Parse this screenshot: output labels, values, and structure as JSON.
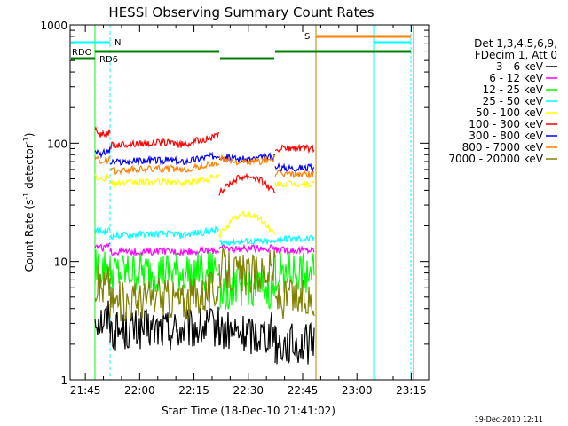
{
  "chart_data": {
    "type": "line",
    "title": "HESSI Observing Summary Count Rates",
    "xlabel": "Start Time (18-Dec-10 21:41:02)",
    "ylabel_main": "Count Rate (s",
    "ylabel_sup1": "-1",
    "ylabel_mid": " detector",
    "ylabel_sup2": "-1",
    "ylabel_end": ")",
    "yscale": "log",
    "ylim": [
      1,
      1000
    ],
    "xlim_minutes": [
      21.68,
      23.33
    ],
    "x_ticks": [
      {
        "label": "21:45",
        "min": 21.75
      },
      {
        "label": "22:00",
        "min": 22.0
      },
      {
        "label": "22:15",
        "min": 22.25
      },
      {
        "label": "22:30",
        "min": 22.5
      },
      {
        "label": "22:45",
        "min": 22.75
      },
      {
        "label": "23:00",
        "min": 23.0
      },
      {
        "label": "23:15",
        "min": 23.25
      }
    ],
    "y_ticks": [
      {
        "label": "1",
        "v": 1
      },
      {
        "label": "10",
        "v": 10
      },
      {
        "label": "100",
        "v": 100
      },
      {
        "label": "1000",
        "v": 1000
      }
    ],
    "legend_title": [
      "Det 1,3,4,5,6,9,",
      "FDecim 1, Att 0"
    ],
    "series": [
      {
        "name": "3 - 6 keV",
        "color": "#000000",
        "levels": [
          3.5,
          2.6,
          2.8,
          2.6,
          2.0
        ]
      },
      {
        "name": "6 - 12 keV",
        "color": "#ff00ff",
        "levels": [
          13.5,
          12.0,
          12.5,
          13.0,
          12.5
        ]
      },
      {
        "name": "12 - 25 keV",
        "color": "#00ff00",
        "levels": [
          9.0,
          7.8,
          8.5,
          5.5,
          8.0
        ]
      },
      {
        "name": "25 - 50 keV",
        "color": "#00ffff",
        "levels": [
          18.5,
          16.5,
          18.5,
          14.5,
          15.5
        ]
      },
      {
        "name": "50 - 100 keV",
        "color": "#ffff00",
        "levels": [
          53.0,
          45.0,
          52.0,
          16.5,
          45.0
        ]
      },
      {
        "name": "100 - 300 keV",
        "color": "#ff0000",
        "levels": [
          128.0,
          95.0,
          115.0,
          37.0,
          90.0
        ]
      },
      {
        "name": "300 - 800 keV",
        "color": "#0000ff",
        "levels": [
          88.0,
          68.0,
          80.0,
          78.0,
          62.0
        ]
      },
      {
        "name": "800 - 7000 keV",
        "color": "#ff8000",
        "levels": [
          75.0,
          58.0,
          68.0,
          75.0,
          55.0
        ]
      },
      {
        "name": "7000 - 20000 keV",
        "color": "#808000",
        "levels": [
          7.0,
          4.5,
          6.0,
          9.0,
          4.8
        ]
      }
    ],
    "flags": [
      {
        "label": "RDO",
        "color": "#008000"
      },
      {
        "label": "RD6",
        "color": "#008000"
      },
      {
        "label": "N",
        "color": "#00ffff"
      },
      {
        "label": "S",
        "color": "#ff8000"
      }
    ],
    "footer_date": "19-Dec-2010 12:11"
  }
}
